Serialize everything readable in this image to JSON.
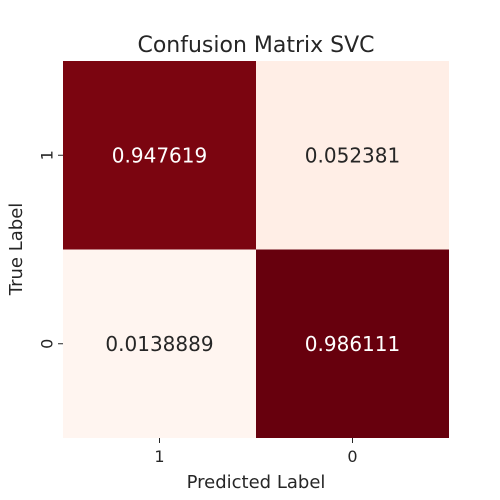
{
  "chart_data": {
    "type": "heatmap",
    "title": "Confusion Matrix SVC",
    "xlabel": "Predicted Label",
    "ylabel": "True Label",
    "x_categories": [
      "1",
      "0"
    ],
    "y_categories": [
      "1",
      "0"
    ],
    "values": [
      [
        0.947619,
        0.052381
      ],
      [
        0.0138889,
        0.986111
      ]
    ],
    "value_labels": [
      [
        "0.947619",
        "0.052381"
      ],
      [
        "0.0138889",
        "0.986111"
      ]
    ],
    "colormap": "Reds",
    "colorbar": false,
    "grid": false
  }
}
